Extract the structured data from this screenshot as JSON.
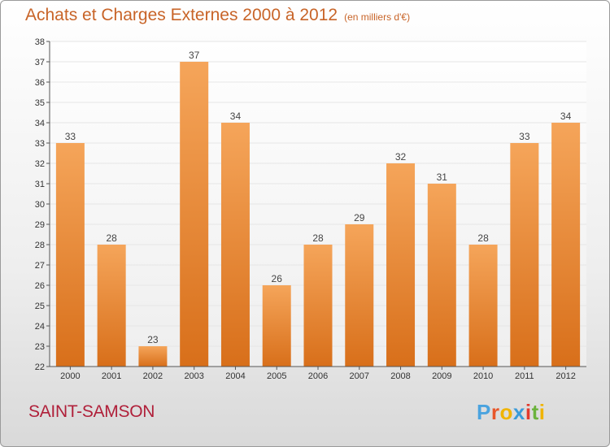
{
  "title": "Achats et Charges Externes 2000 à 2012",
  "subtitle": "(en milliers d'€)",
  "place": "SAINT-SAMSON",
  "logo": {
    "text": "Proxiti",
    "letter_colors": [
      "#4aa3df",
      "#e8562a",
      "#f0b400",
      "#3a9bd9",
      "#e23a2e",
      "#6bb33c",
      "#f0b400"
    ]
  },
  "colors": {
    "bar_top": "#f5a55a",
    "bar_bottom": "#d86f1a",
    "title": "#c86428",
    "place": "#b0203a",
    "grid": "#e6e6e6",
    "axis": "#555555"
  },
  "chart_data": {
    "type": "bar",
    "categories": [
      "2000",
      "2001",
      "2002",
      "2003",
      "2004",
      "2005",
      "2006",
      "2007",
      "2008",
      "2009",
      "2010",
      "2011",
      "2012"
    ],
    "values": [
      33,
      28,
      23,
      37,
      34,
      26,
      28,
      29,
      32,
      31,
      28,
      33,
      34
    ],
    "ylim": [
      22,
      38
    ],
    "yticks": [
      22,
      23,
      24,
      25,
      26,
      27,
      28,
      29,
      30,
      31,
      32,
      33,
      34,
      35,
      36,
      37,
      38
    ],
    "grid": true,
    "data_labels": true
  }
}
